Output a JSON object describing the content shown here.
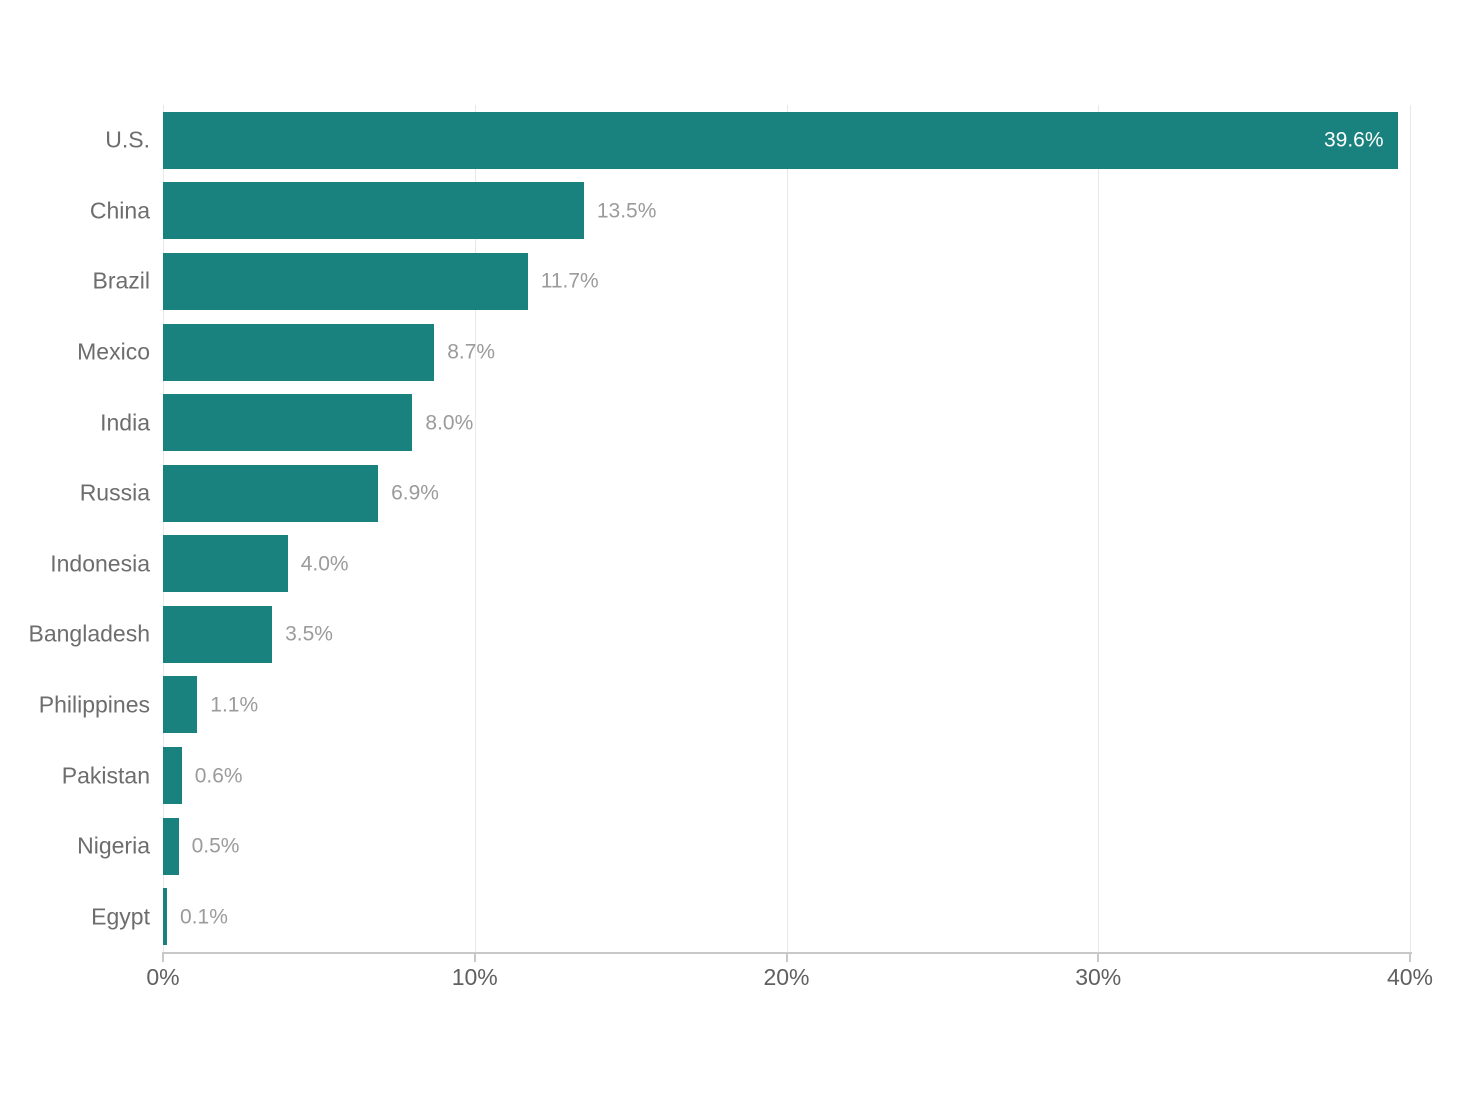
{
  "chart_data": {
    "type": "bar",
    "orientation": "horizontal",
    "title": "",
    "xlabel": "",
    "ylabel": "",
    "categories": [
      "U.S.",
      "China",
      "Brazil",
      "Mexico",
      "India",
      "Russia",
      "Indonesia",
      "Bangladesh",
      "Philippines",
      "Pakistan",
      "Nigeria",
      "Egypt"
    ],
    "values": [
      39.6,
      13.5,
      11.7,
      8.7,
      8.0,
      6.9,
      4.0,
      3.5,
      1.1,
      0.6,
      0.5,
      0.1
    ],
    "value_labels": [
      "39.6%",
      "13.5%",
      "11.7%",
      "8.7%",
      "8.0%",
      "6.9%",
      "4.0%",
      "3.5%",
      "1.1%",
      "0.6%",
      "0.5%",
      "0.1%"
    ],
    "x_ticks": [
      "0%",
      "10%",
      "20%",
      "30%",
      "40%"
    ],
    "x_tick_values": [
      0,
      10,
      20,
      30,
      40
    ],
    "xlim": [
      0,
      40
    ],
    "grid": "vertical",
    "legend": "none",
    "colors": {
      "bar": "#1a827e",
      "gridline": "#e8e8e8",
      "axis_line": "#c8c8c8",
      "category_label": "#6d6d6d",
      "value_label": "#9b9b9b",
      "value_label_inside": "#ffffff",
      "tick_label": "#606060",
      "background": "#ffffff"
    }
  }
}
